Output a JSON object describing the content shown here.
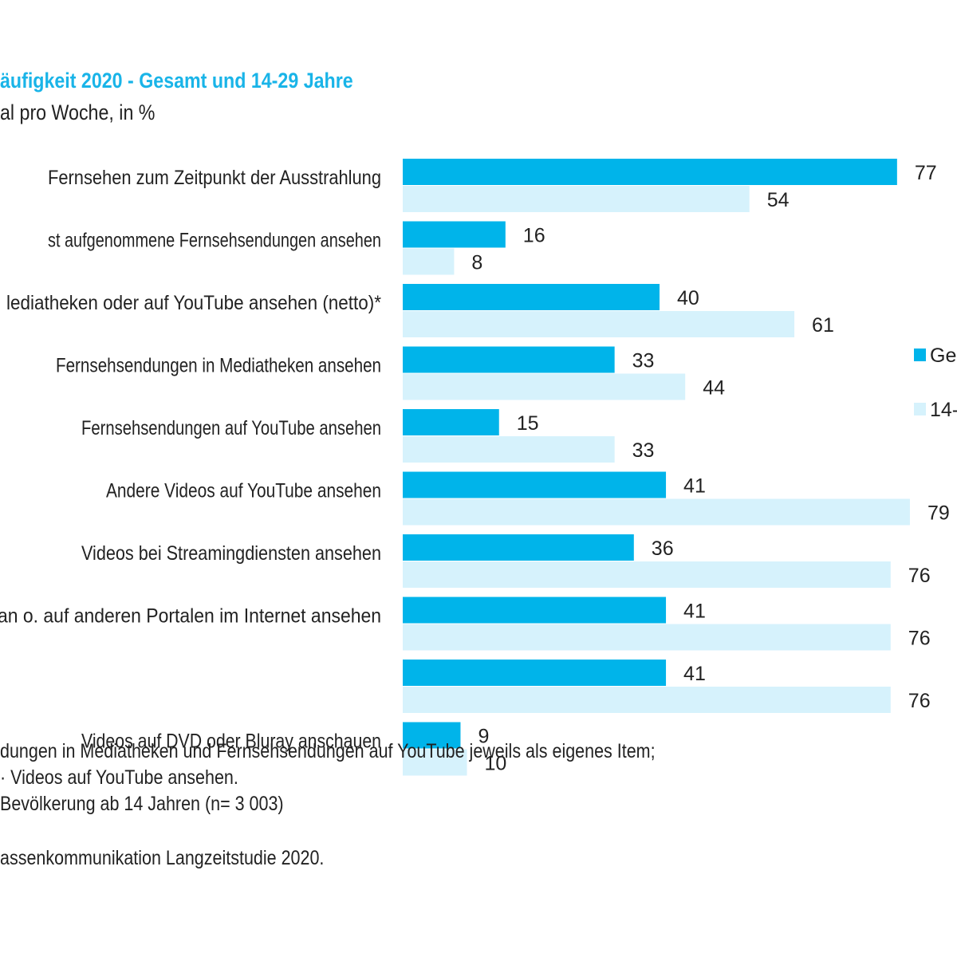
{
  "header": {
    "title": "äufigkeit 2020 - Gesamt und 14-29 Jahre",
    "subtitle": "al pro Woche, in %"
  },
  "colors": {
    "title": "#19b4e8",
    "series_gesamt": "#00b4ea",
    "series_young": "#d6f2fc",
    "text": "#222222"
  },
  "chart_data": {
    "type": "bar",
    "orientation": "horizontal",
    "categories": [
      "Fernsehen zum Zeitpunkt der Ausstrahlung",
      "st aufgenommene Fernsehsendungen ansehen",
      "lediatheken oder auf YouTube ansehen (netto)*",
      "Fernsehsendungen in Mediatheken ansehen",
      "Fernsehsendungen auf YouTube ansehen",
      "Andere Videos auf YouTube ansehen",
      "Videos bei Streamingdiensten ansehen",
      "an o. auf anderen Portalen im Internet ansehen",
      "",
      "Videos auf DVD oder Bluray anschauen"
    ],
    "series": [
      {
        "name": "Ges",
        "values": [
          77,
          16,
          40,
          33,
          15,
          41,
          36,
          41,
          41,
          9
        ]
      },
      {
        "name": "14-",
        "values": [
          54,
          8,
          61,
          44,
          33,
          79,
          76,
          76,
          76,
          10
        ]
      }
    ],
    "xlim": [
      0,
      79
    ],
    "data_labels": true,
    "grid": false,
    "legend_position": "right"
  },
  "footnotes": [
    "dungen in Mediatheken und Fernsehsendungen auf YouTube jeweils als eigenes Item;",
    "· Videos auf YouTube ansehen.",
    "Bevölkerung ab 14 Jahren (n= 3 003)"
  ],
  "source": "assenkommunikation Langzeitstudie 2020."
}
